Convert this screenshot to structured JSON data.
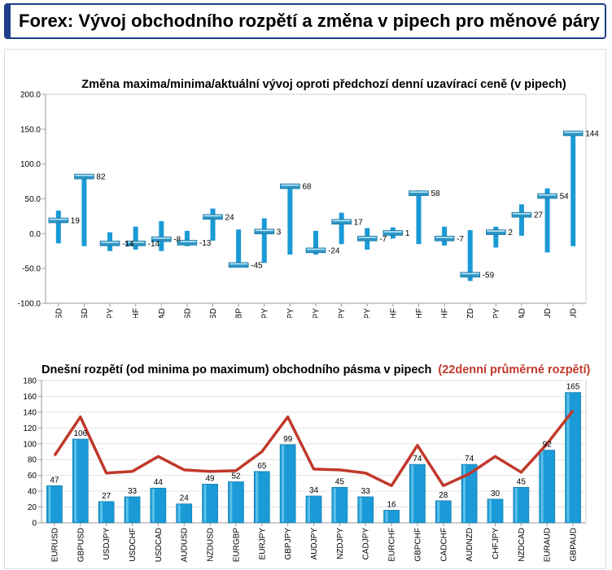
{
  "header": {
    "title": "Forex: Vývoj obchodního rozpětí a změna v pipech pro měnové páry"
  },
  "colors": {
    "bar": "#1a9ad6",
    "marker": "#2b96c6",
    "avg_line": "#c0392b",
    "title_red": "#c0392b",
    "header_border": "#1f3f8a"
  },
  "chart_data": [
    {
      "type": "range",
      "title": "Změna maxima/minima/aktuální vývoj oproti předchozí denní uzavírací ceně (v pipech)",
      "ylim": [
        -100,
        200
      ],
      "yticks": [
        "200.0",
        "150.0",
        "100.0",
        "50.0",
        "0.0",
        "-50.0",
        "-100.0"
      ],
      "ytick_values": [
        200,
        150,
        100,
        50,
        0,
        -50,
        -100
      ],
      "categories": [
        "EURUSD",
        "GBPUSD",
        "USDJPY",
        "USDCHF",
        "USDCAD",
        "AUDUSD",
        "NZDUSD",
        "EURGBP",
        "EURJPY",
        "GBPJPY",
        "AUDJPY",
        "NZDJPY",
        "CADJPY",
        "EURCHF",
        "GBPCHF",
        "CADCHF",
        "AUDNZD",
        "CHFJPY",
        "NZDCAD",
        "EURAUD",
        "GBPAUD"
      ],
      "current": [
        19,
        82,
        -14,
        -14,
        -8,
        -13,
        24,
        -45,
        3,
        68,
        -24,
        17,
        -7,
        1,
        58,
        -7,
        -59,
        2,
        27,
        54,
        144
      ],
      "current_labels": [
        "19",
        "82",
        "-14",
        "-14",
        "-8",
        "-13",
        "24",
        "-45",
        "3",
        "68",
        "-24",
        "17",
        "-7",
        "1",
        "58",
        "-7",
        "-59",
        "2",
        "27",
        "54",
        "144"
      ],
      "high": [
        33,
        85,
        2,
        10,
        18,
        4,
        36,
        6,
        22,
        70,
        4,
        30,
        8,
        9,
        62,
        10,
        5,
        10,
        42,
        65,
        147
      ],
      "low": [
        -14,
        -18,
        -25,
        -23,
        -25,
        -18,
        -10,
        -45,
        -42,
        -30,
        -30,
        -15,
        -23,
        -7,
        -15,
        -17,
        -68,
        -20,
        -3,
        -27,
        -18
      ]
    },
    {
      "type": "bar",
      "title": "Dnešní rozpětí (od minima po maximum) obchodního pásma v pipech",
      "title_suffix": "(22denní průměrné rozpětí)",
      "ylim": [
        0,
        180
      ],
      "yticks": [
        "180",
        "160",
        "140",
        "120",
        "100",
        "80",
        "60",
        "40",
        "20",
        "0"
      ],
      "ytick_values": [
        180,
        160,
        140,
        120,
        100,
        80,
        60,
        40,
        20,
        0
      ],
      "categories": [
        "EURUSD",
        "GBPUSD",
        "USDJPY",
        "USDCHF",
        "USDCAD",
        "AUDUSD",
        "NZDUSD",
        "EURGBP",
        "EURJPY",
        "GBPJPY",
        "AUDJPY",
        "NZDJPY",
        "CADJPY",
        "EURCHF",
        "GBPCHF",
        "CADCHF",
        "AUDNZD",
        "CHFJPY",
        "NZDCAD",
        "EURAUD",
        "GBPAUD"
      ],
      "values": [
        47,
        106,
        27,
        33,
        44,
        24,
        49,
        52,
        65,
        99,
        34,
        45,
        33,
        16,
        74,
        28,
        74,
        30,
        45,
        92,
        165
      ],
      "value_labels": [
        "47",
        "106",
        "27",
        "33",
        "44",
        "24",
        "49",
        "52",
        "65",
        "99",
        "34",
        "45",
        "33",
        "16",
        "74",
        "28",
        "74",
        "30",
        "45",
        "92",
        "165"
      ],
      "avg_22d": [
        85,
        134,
        63,
        65,
        84,
        67,
        65,
        66,
        90,
        134,
        68,
        67,
        63,
        47,
        98,
        47,
        62,
        84,
        64,
        100,
        142
      ]
    }
  ]
}
